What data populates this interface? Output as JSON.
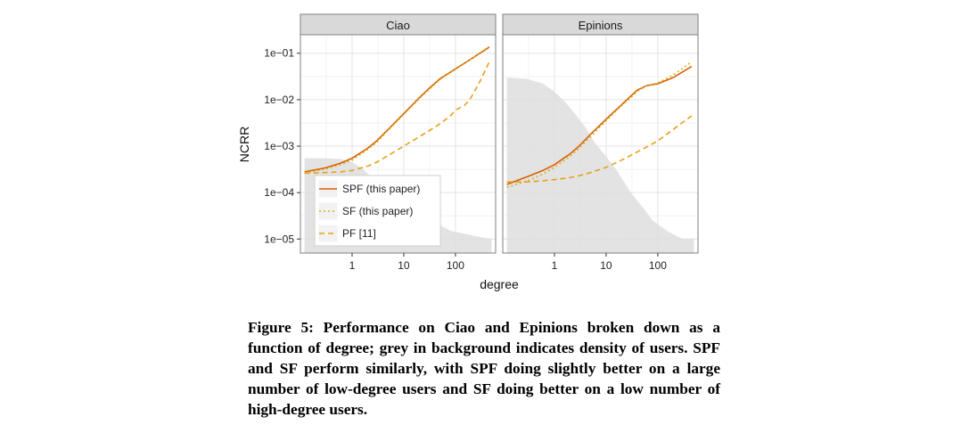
{
  "chart_data": {
    "type": "line",
    "ylabel": "NCRR",
    "xlabel": "degree",
    "x_scale": "log",
    "y_scale": "log",
    "x_ticks": [
      1,
      10,
      100
    ],
    "x_tick_labels": [
      "1",
      "10",
      "100"
    ],
    "xlim": [
      0.1,
      600
    ],
    "y_ticks": [
      1e-05,
      0.0001,
      0.001,
      0.01,
      0.1
    ],
    "y_tick_labels": [
      "1e−05",
      "1e−04",
      "1e−03",
      "1e−02",
      "1e−01"
    ],
    "ylim": [
      5e-06,
      0.25
    ],
    "grid": true,
    "legend_placement": "bottom-left of first panel",
    "legend": [
      {
        "label": "SPF (this paper)",
        "color": "#d95f02",
        "dash": "solid"
      },
      {
        "label": "SF (this paper)",
        "color": "#d4b21a",
        "dash": "dotted"
      },
      {
        "label": "PF [11]",
        "color": "#e6a01c",
        "dash": "dashed"
      }
    ],
    "panels": [
      {
        "title": "Ciao",
        "density_background": [
          [
            0.12,
            0.00055
          ],
          [
            0.3,
            0.00055
          ],
          [
            0.6,
            0.00053
          ],
          [
            1.0,
            0.00045
          ],
          [
            1.6,
            0.00033
          ],
          [
            2.5,
            0.0002
          ],
          [
            4,
            0.00011
          ],
          [
            6,
            6e-05
          ],
          [
            10,
            4e-05
          ],
          [
            16,
            3e-05
          ],
          [
            30,
            2.5e-05
          ],
          [
            50,
            2e-05
          ],
          [
            80,
            1.5e-05
          ],
          [
            150,
            1.3e-05
          ],
          [
            300,
            1.1e-05
          ],
          [
            500,
            1e-05
          ]
        ],
        "series": [
          {
            "name": "SPF (this paper)",
            "x": [
              0.12,
              0.3,
              0.6,
              1,
              2,
              3,
              5,
              10,
              20,
              30,
              50,
              100,
              200,
              450
            ],
            "y": [
              0.00028,
              0.00034,
              0.00043,
              0.00055,
              0.0009,
              0.0013,
              0.0023,
              0.005,
              0.011,
              0.017,
              0.028,
              0.046,
              0.075,
              0.135
            ]
          },
          {
            "name": "SF (this paper)",
            "x": [
              0.12,
              0.3,
              0.6,
              1,
              2,
              3,
              5,
              10,
              20,
              30,
              50,
              100,
              200,
              450
            ],
            "y": [
              0.00026,
              0.00032,
              0.0004,
              0.0005,
              0.00085,
              0.0012,
              0.0022,
              0.0048,
              0.0105,
              0.016,
              0.027,
              0.045,
              0.075,
              0.14
            ]
          },
          {
            "name": "PF [11]",
            "x": [
              0.12,
              0.3,
              0.6,
              1,
              2,
              3,
              5,
              10,
              20,
              30,
              50,
              80,
              100,
              150,
              200,
              300,
              450
            ],
            "y": [
              0.00026,
              0.00027,
              0.00028,
              0.0003,
              0.00037,
              0.00045,
              0.00063,
              0.001,
              0.0016,
              0.0021,
              0.003,
              0.0045,
              0.006,
              0.0075,
              0.011,
              0.025,
              0.065
            ]
          }
        ]
      },
      {
        "title": "Epinions",
        "density_background": [
          [
            0.12,
            0.03
          ],
          [
            0.3,
            0.028
          ],
          [
            0.6,
            0.022
          ],
          [
            1.0,
            0.015
          ],
          [
            1.6,
            0.009
          ],
          [
            2.5,
            0.005
          ],
          [
            4,
            0.0025
          ],
          [
            6,
            0.0012
          ],
          [
            10,
            0.0006
          ],
          [
            16,
            0.0003
          ],
          [
            30,
            0.0001
          ],
          [
            50,
            5e-05
          ],
          [
            80,
            2.5e-05
          ],
          [
            150,
            1.5e-05
          ],
          [
            300,
            1e-05
          ],
          [
            500,
            1e-05
          ]
        ],
        "series": [
          {
            "name": "SPF (this paper)",
            "x": [
              0.12,
              0.3,
              0.6,
              1,
              2,
              3,
              5,
              10,
              20,
              30,
              40,
              60,
              100,
              200,
              450
            ],
            "y": [
              0.00015,
              0.00022,
              0.0003,
              0.0004,
              0.00068,
              0.001,
              0.0018,
              0.0038,
              0.0078,
              0.012,
              0.016,
              0.02,
              0.022,
              0.03,
              0.052
            ]
          },
          {
            "name": "SF (this paper)",
            "x": [
              0.12,
              0.3,
              0.6,
              1,
              2,
              3,
              5,
              10,
              20,
              30,
              40,
              60,
              100,
              200,
              450
            ],
            "y": [
              0.00013,
              0.00018,
              0.00025,
              0.00035,
              0.0006,
              0.0009,
              0.0016,
              0.0035,
              0.0075,
              0.011,
              0.015,
              0.02,
              0.023,
              0.034,
              0.065
            ]
          },
          {
            "name": "PF [11]",
            "x": [
              0.12,
              0.3,
              0.6,
              1,
              2,
              3,
              5,
              10,
              20,
              50,
              100,
              200,
              450
            ],
            "y": [
              0.00017,
              0.00017,
              0.00018,
              0.00019,
              0.00021,
              0.00023,
              0.00027,
              0.00035,
              0.0005,
              0.00085,
              0.0013,
              0.0023,
              0.0045
            ]
          }
        ]
      }
    ]
  },
  "caption": "Figure 5: Performance on Ciao and Epinions broken down as a function of degree; grey in background indicates density of users. SPF and SF perform similarly, with SPF doing slightly better on a large number of low-degree users and SF doing better on a low number of high-degree users."
}
